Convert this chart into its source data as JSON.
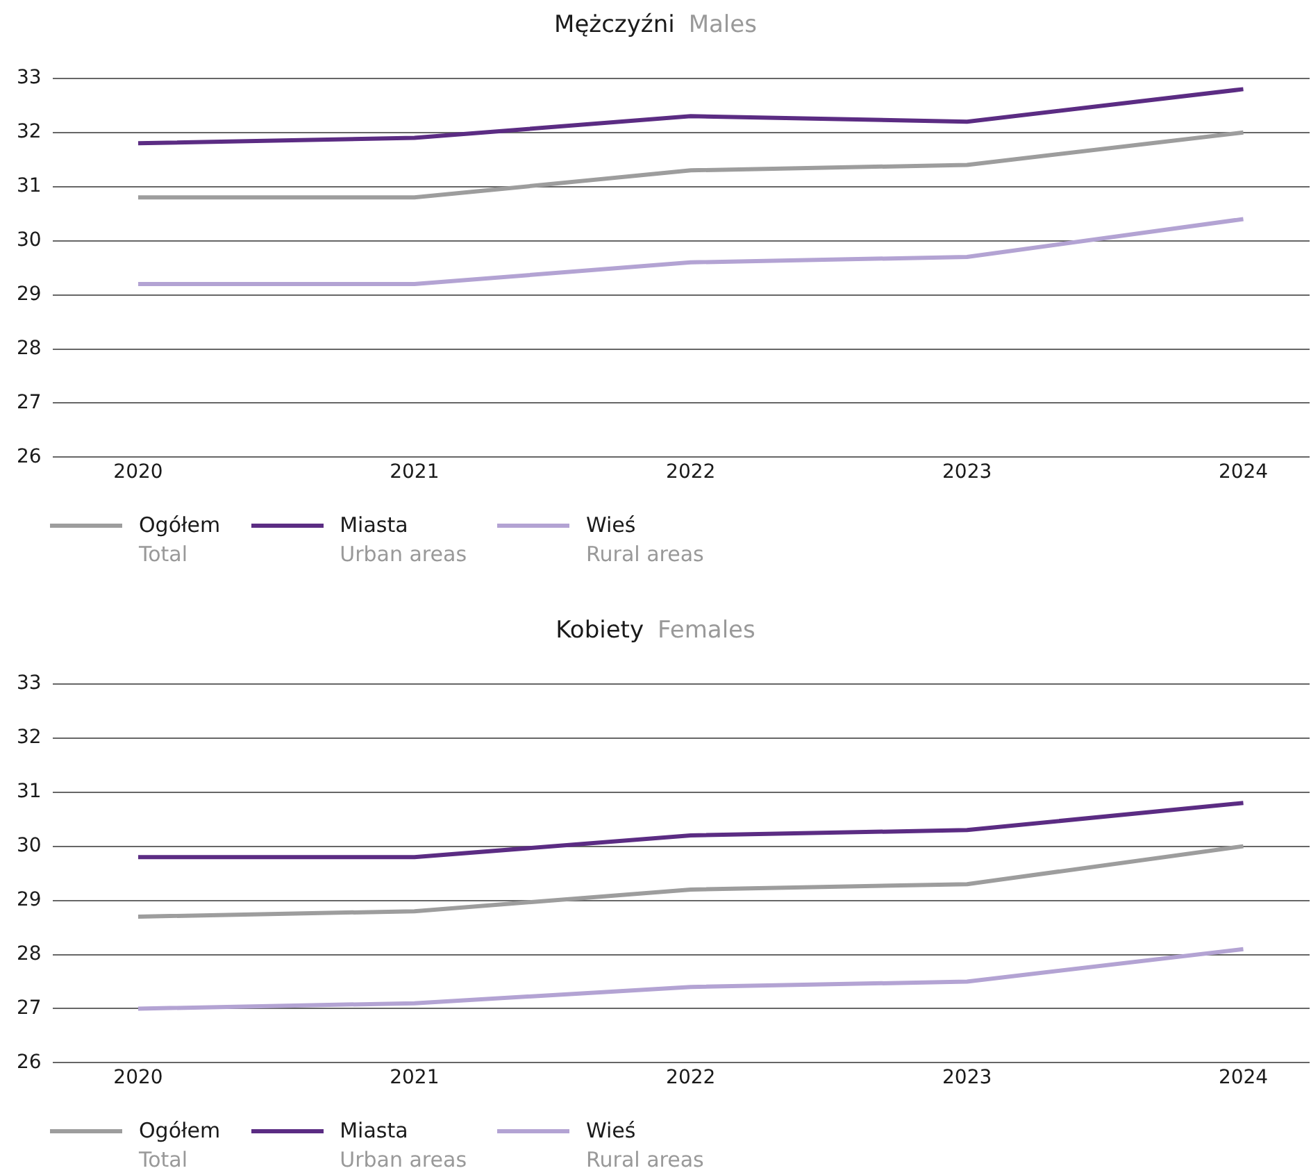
{
  "chart_data": [
    {
      "type": "line",
      "title": "Mężczyźni",
      "subtitle": "Males",
      "x": [
        2020,
        2021,
        2022,
        2023,
        2024
      ],
      "xlim": [
        2019.69,
        2024.24
      ],
      "xticks": [
        2020,
        2021,
        2022,
        2023,
        2024
      ],
      "ylim": [
        26,
        33
      ],
      "yticks": [
        26,
        27,
        28,
        29,
        30,
        31,
        32,
        33
      ],
      "grid": "y",
      "legend": "bottom",
      "marker": "none",
      "line_style": "solid",
      "series": [
        {
          "name": "Ogółem\nTotal",
          "color": "#9d9d9d",
          "values": [
            30.8,
            30.8,
            31.3,
            31.4,
            32.0
          ]
        },
        {
          "name": "Miasta\nUrban areas",
          "color": "#5b2c83",
          "values": [
            31.8,
            31.9,
            32.3,
            32.2,
            32.8
          ]
        },
        {
          "name": "Wieś\nRural areas",
          "color": "#b3a3d3",
          "values": [
            29.2,
            29.2,
            29.6,
            29.7,
            30.4
          ]
        }
      ]
    },
    {
      "type": "line",
      "title": "Kobiety",
      "subtitle": "Females",
      "x": [
        2020,
        2021,
        2022,
        2023,
        2024
      ],
      "xlim": [
        2019.69,
        2024.24
      ],
      "xticks": [
        2020,
        2021,
        2022,
        2023,
        2024
      ],
      "ylim": [
        26,
        33
      ],
      "yticks": [
        26,
        27,
        28,
        29,
        30,
        31,
        32,
        33
      ],
      "grid": "y",
      "legend": "bottom",
      "marker": "none",
      "line_style": "solid",
      "series": [
        {
          "name": "Ogółem\nTotal",
          "color": "#9d9d9d",
          "values": [
            28.7,
            28.8,
            29.2,
            29.3,
            30.0
          ]
        },
        {
          "name": "Miasta\nUrban areas",
          "color": "#5b2c83",
          "values": [
            29.8,
            29.8,
            30.2,
            30.3,
            30.8
          ]
        },
        {
          "name": "Wieś\nRural areas",
          "color": "#b3a3d3",
          "values": [
            27.0,
            27.1,
            27.4,
            27.5,
            28.1
          ]
        }
      ]
    }
  ]
}
